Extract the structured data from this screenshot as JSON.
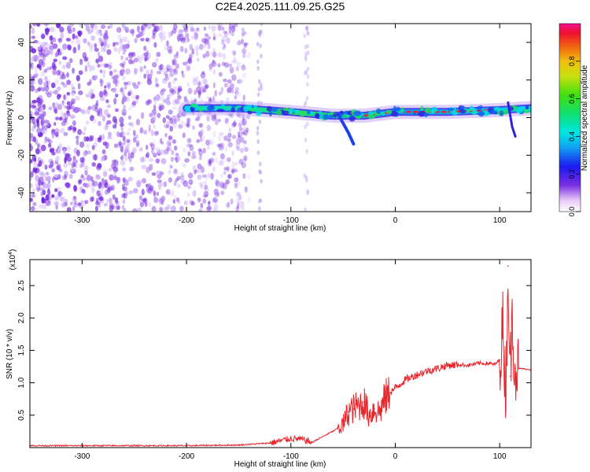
{
  "title": "C2E4.2025.111.09.25.G25",
  "chart_data": [
    {
      "type": "heatmap",
      "xlabel": "Height of straight line (km)",
      "ylabel": "Frequency (Hz)",
      "xlim": [
        -350,
        130
      ],
      "ylim": [
        -50,
        50
      ],
      "xticks": [
        "-300",
        "-200",
        "-100",
        "0",
        "100"
      ],
      "yticks": [
        "-40",
        "-20",
        "0",
        "20",
        "40"
      ],
      "grid": false,
      "colorbar": {
        "label": "Normalized spectral amplitude",
        "range": [
          0,
          1
        ],
        "ticks": [
          "0.0",
          "0.2",
          "0.4",
          "0.6",
          "0.8"
        ]
      },
      "features": {
        "noise_region_x": [
          -350,
          -140
        ],
        "ridge": [
          [
            -200,
            5
          ],
          [
            -150,
            5
          ],
          [
            -100,
            3
          ],
          [
            -60,
            1
          ],
          [
            -30,
            1
          ],
          [
            0,
            3
          ],
          [
            50,
            3
          ],
          [
            100,
            4
          ],
          [
            130,
            5
          ]
        ]
      }
    },
    {
      "type": "line",
      "xlabel": "Height of straight line (km)",
      "ylabel": "SNR (10 * v/v)",
      "multiplier": "(x10",
      "multiplier_exp": "4",
      "xlim": [
        -350,
        130
      ],
      "ylim": [
        0,
        2.9
      ],
      "xticks": [
        "-300",
        "-200",
        "-100",
        "0",
        "100"
      ],
      "yticks": [
        "0.5",
        "1.0",
        "1.5",
        "2.0",
        "2.5"
      ],
      "grid": false,
      "color": "#e8262b",
      "series": [
        {
          "x": [
            -350,
            -200,
            -150,
            -120,
            -100,
            -90,
            -80,
            -60,
            -50,
            -45,
            -40,
            -35,
            -30,
            -25,
            -20,
            -15,
            -10,
            -5,
            0,
            10,
            20,
            30,
            40,
            50,
            60,
            70,
            80,
            90,
            95,
            100,
            103,
            106,
            108,
            110,
            112,
            115,
            120,
            130
          ],
          "y": [
            0.03,
            0.03,
            0.04,
            0.07,
            0.14,
            0.13,
            0.08,
            0.25,
            0.35,
            0.55,
            0.6,
            0.65,
            0.7,
            0.5,
            0.6,
            0.55,
            0.75,
            0.85,
            0.92,
            1.05,
            1.12,
            1.18,
            1.22,
            1.27,
            1.28,
            1.27,
            1.3,
            1.3,
            1.28,
            1.35,
            1.9,
            0.8,
            2.8,
            1.1,
            1.95,
            1.22,
            1.22,
            1.2
          ]
        }
      ]
    }
  ]
}
